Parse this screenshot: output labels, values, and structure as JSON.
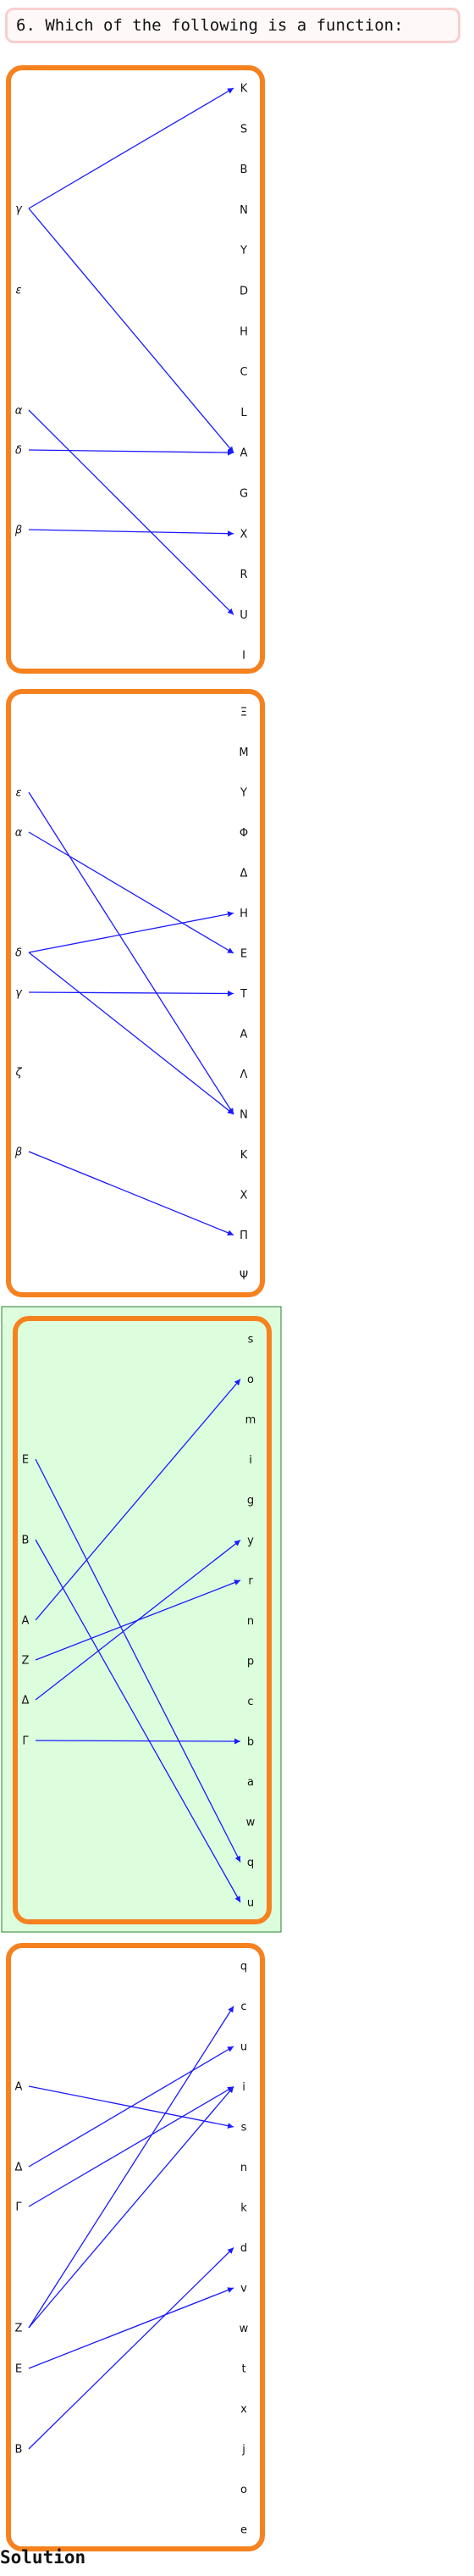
{
  "question": "6. Which of the following is a function:",
  "solution_label": "Solution",
  "colors": {
    "panel_border": "#f5821f",
    "arrow": "#1a1aff",
    "highlight_bg": "#dcfedc",
    "highlight_border": "#2e7d32",
    "question_border": "#f7cfcf"
  },
  "diagrams": [
    {
      "highlighted": false,
      "left": [
        "γ",
        "ε",
        "α",
        "δ",
        "β"
      ],
      "right": [
        "K",
        "S",
        "B",
        "N",
        "Y",
        "D",
        "H",
        "C",
        "L",
        "A",
        "G",
        "X",
        "R",
        "U",
        "I"
      ],
      "mappings": [
        [
          "γ",
          "K"
        ],
        [
          "γ",
          "A"
        ],
        [
          "α",
          "U"
        ],
        [
          "δ",
          "A"
        ],
        [
          "β",
          "X"
        ]
      ]
    },
    {
      "highlighted": false,
      "left": [
        "ε",
        "α",
        "δ",
        "γ",
        "ζ",
        "β"
      ],
      "right": [
        "Ξ",
        "M",
        "Υ",
        "Φ",
        "Δ",
        "H",
        "E",
        "T",
        "A",
        "Λ",
        "N",
        "K",
        "X",
        "Π",
        "Ψ"
      ],
      "mappings": [
        [
          "ε",
          "N"
        ],
        [
          "α",
          "E"
        ],
        [
          "δ",
          "H"
        ],
        [
          "δ",
          "N"
        ],
        [
          "γ",
          "T"
        ],
        [
          "β",
          "Π"
        ]
      ]
    },
    {
      "highlighted": true,
      "left": [
        "E",
        "B",
        "A",
        "Z",
        "Δ",
        "Γ"
      ],
      "right": [
        "s",
        "o",
        "m",
        "i",
        "g",
        "y",
        "r",
        "n",
        "p",
        "c",
        "b",
        "a",
        "w",
        "q",
        "u"
      ],
      "mappings": [
        [
          "E",
          "q"
        ],
        [
          "B",
          "u"
        ],
        [
          "A",
          "o"
        ],
        [
          "Z",
          "r"
        ],
        [
          "Δ",
          "y"
        ],
        [
          "Γ",
          "b"
        ]
      ]
    },
    {
      "highlighted": false,
      "left": [
        "A",
        "Δ",
        "Γ",
        "Z",
        "E",
        "B"
      ],
      "right": [
        "q",
        "c",
        "u",
        "i",
        "s",
        "n",
        "k",
        "d",
        "v",
        "w",
        "t",
        "x",
        "j",
        "o",
        "e"
      ],
      "mappings": [
        [
          "A",
          "s"
        ],
        [
          "Δ",
          "u"
        ],
        [
          "Γ",
          "i"
        ],
        [
          "Z",
          "c"
        ],
        [
          "Z",
          "i"
        ],
        [
          "E",
          "v"
        ],
        [
          "B",
          "d"
        ]
      ]
    }
  ]
}
